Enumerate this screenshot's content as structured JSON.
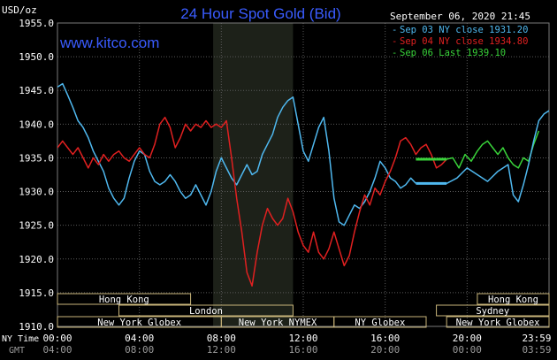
{
  "chart_data": {
    "type": "line",
    "title": "24 Hour Spot Gold (Bid)",
    "unit_label": "USD/oz",
    "watermark": "www.kitco.com",
    "date_label": "September 06, 2020 21:45",
    "x_unit": "hour of day (NY Time)",
    "xlim": [
      0,
      24
    ],
    "ylim": [
      1910,
      1955
    ],
    "y_ticks": [
      "1955.0",
      "1950.0",
      "1945.0",
      "1940.0",
      "1935.0",
      "1930.0",
      "1925.0",
      "1920.0",
      "1915.0",
      "1910.0"
    ],
    "x_tick_values": [
      0,
      4,
      8,
      12,
      16,
      20,
      24
    ],
    "x_ticks_ny": [
      "00:00",
      "04:00",
      "08:00",
      "12:00",
      "16:00",
      "20:00",
      "23:59"
    ],
    "x_ticks_gmt": [
      "04:00",
      "08:00",
      "12:00",
      "16:00",
      "20:00",
      "00:00",
      "03:59"
    ],
    "axis_row_ny": "NY Time",
    "axis_row_gmt": "GMT",
    "grid": true,
    "legend_position": "top-right",
    "shaded_range": [
      7.6,
      11.5
    ],
    "series": [
      {
        "name": "Sep 03 NY close 1931.20",
        "color": "#4fb8ef",
        "points": [
          [
            0,
            1945.5
          ],
          [
            0.25,
            1946.0
          ],
          [
            0.5,
            1944.3
          ],
          [
            0.75,
            1942.5
          ],
          [
            1.0,
            1940.5
          ],
          [
            1.25,
            1939.5
          ],
          [
            1.5,
            1938.0
          ],
          [
            1.75,
            1936.0
          ],
          [
            2.0,
            1934.5
          ],
          [
            2.25,
            1933.0
          ],
          [
            2.5,
            1930.5
          ],
          [
            2.75,
            1929.0
          ],
          [
            3.0,
            1928.0
          ],
          [
            3.25,
            1929.0
          ],
          [
            3.5,
            1932.0
          ],
          [
            3.75,
            1934.5
          ],
          [
            4.0,
            1936.0
          ],
          [
            4.25,
            1935.5
          ],
          [
            4.5,
            1933.0
          ],
          [
            4.75,
            1931.5
          ],
          [
            5.0,
            1931.0
          ],
          [
            5.25,
            1931.5
          ],
          [
            5.5,
            1932.5
          ],
          [
            5.75,
            1931.5
          ],
          [
            6.0,
            1930.0
          ],
          [
            6.25,
            1929.0
          ],
          [
            6.5,
            1929.5
          ],
          [
            6.75,
            1931.0
          ],
          [
            7.0,
            1929.5
          ],
          [
            7.25,
            1928.0
          ],
          [
            7.5,
            1930.0
          ],
          [
            7.75,
            1933.0
          ],
          [
            8.0,
            1935.0
          ],
          [
            8.25,
            1933.5
          ],
          [
            8.5,
            1932.0
          ],
          [
            8.75,
            1931.0
          ],
          [
            9.0,
            1932.5
          ],
          [
            9.25,
            1934.0
          ],
          [
            9.5,
            1932.5
          ],
          [
            9.75,
            1933.0
          ],
          [
            10.0,
            1935.5
          ],
          [
            10.25,
            1937.0
          ],
          [
            10.5,
            1938.5
          ],
          [
            10.75,
            1941.0
          ],
          [
            11.0,
            1942.5
          ],
          [
            11.25,
            1943.5
          ],
          [
            11.5,
            1944.0
          ],
          [
            11.75,
            1940.0
          ],
          [
            12.0,
            1936.0
          ],
          [
            12.25,
            1934.5
          ],
          [
            12.5,
            1937.0
          ],
          [
            12.75,
            1939.5
          ],
          [
            13.0,
            1941.0
          ],
          [
            13.25,
            1936.0
          ],
          [
            13.5,
            1929.0
          ],
          [
            13.75,
            1925.5
          ],
          [
            14.0,
            1925.0
          ],
          [
            14.25,
            1926.5
          ],
          [
            14.5,
            1928.0
          ],
          [
            14.75,
            1927.5
          ],
          [
            15.0,
            1928.5
          ],
          [
            15.25,
            1930.0
          ],
          [
            15.5,
            1932.0
          ],
          [
            15.75,
            1934.5
          ],
          [
            16.0,
            1933.5
          ],
          [
            16.25,
            1932.0
          ],
          [
            16.5,
            1931.5
          ],
          [
            16.75,
            1930.5
          ],
          [
            17.0,
            1931.0
          ],
          [
            17.25,
            1932.0
          ],
          [
            17.5,
            1931.2
          ]
        ]
      },
      {
        "name": "Sep 04 NY close 1934.80",
        "color": "#e02020",
        "points": [
          [
            0,
            1936.5
          ],
          [
            0.25,
            1937.5
          ],
          [
            0.5,
            1936.5
          ],
          [
            0.75,
            1935.5
          ],
          [
            1.0,
            1936.5
          ],
          [
            1.25,
            1935.0
          ],
          [
            1.5,
            1933.5
          ],
          [
            1.75,
            1935.0
          ],
          [
            2.0,
            1934.0
          ],
          [
            2.25,
            1935.5
          ],
          [
            2.5,
            1934.5
          ],
          [
            2.75,
            1935.5
          ],
          [
            3.0,
            1936.0
          ],
          [
            3.25,
            1935.0
          ],
          [
            3.5,
            1934.5
          ],
          [
            3.75,
            1935.5
          ],
          [
            4.0,
            1936.5
          ],
          [
            4.25,
            1935.5
          ],
          [
            4.5,
            1935.0
          ],
          [
            4.75,
            1937.0
          ],
          [
            5.0,
            1940.0
          ],
          [
            5.25,
            1941.0
          ],
          [
            5.5,
            1939.5
          ],
          [
            5.75,
            1936.5
          ],
          [
            6.0,
            1938.0
          ],
          [
            6.25,
            1940.0
          ],
          [
            6.5,
            1939.0
          ],
          [
            6.75,
            1940.0
          ],
          [
            7.0,
            1939.5
          ],
          [
            7.25,
            1940.5
          ],
          [
            7.5,
            1939.5
          ],
          [
            7.75,
            1940.0
          ],
          [
            8.0,
            1939.5
          ],
          [
            8.25,
            1940.5
          ],
          [
            8.5,
            1935.0
          ],
          [
            8.75,
            1929.0
          ],
          [
            9.0,
            1924.0
          ],
          [
            9.25,
            1918.0
          ],
          [
            9.5,
            1916.0
          ],
          [
            9.75,
            1921.0
          ],
          [
            10.0,
            1925.0
          ],
          [
            10.25,
            1927.5
          ],
          [
            10.5,
            1926.0
          ],
          [
            10.75,
            1925.0
          ],
          [
            11.0,
            1926.0
          ],
          [
            11.25,
            1929.0
          ],
          [
            11.5,
            1927.0
          ],
          [
            11.75,
            1924.0
          ],
          [
            12.0,
            1922.0
          ],
          [
            12.25,
            1921.0
          ],
          [
            12.5,
            1924.0
          ],
          [
            12.75,
            1921.0
          ],
          [
            13.0,
            1920.0
          ],
          [
            13.25,
            1921.5
          ],
          [
            13.5,
            1924.0
          ],
          [
            13.75,
            1921.5
          ],
          [
            14.0,
            1919.0
          ],
          [
            14.25,
            1920.5
          ],
          [
            14.5,
            1924.0
          ],
          [
            14.75,
            1927.0
          ],
          [
            15.0,
            1929.5
          ],
          [
            15.25,
            1928.0
          ],
          [
            15.5,
            1930.5
          ],
          [
            15.75,
            1929.5
          ],
          [
            16.0,
            1931.5
          ],
          [
            16.25,
            1933.0
          ],
          [
            16.5,
            1935.0
          ],
          [
            16.75,
            1937.5
          ],
          [
            17.0,
            1938.0
          ],
          [
            17.25,
            1937.0
          ],
          [
            17.5,
            1935.5
          ],
          [
            17.75,
            1936.5
          ],
          [
            18.0,
            1937.0
          ],
          [
            18.25,
            1935.5
          ],
          [
            18.5,
            1933.5
          ],
          [
            18.75,
            1934.0
          ],
          [
            19.0,
            1934.8
          ]
        ]
      },
      {
        "name": "Sep 06 Last 1939.10",
        "color": "#39d33a",
        "points": [
          [
            19.0,
            1934.8
          ],
          [
            19.3,
            1935.0
          ],
          [
            19.6,
            1933.5
          ],
          [
            19.9,
            1935.5
          ],
          [
            20.2,
            1934.5
          ],
          [
            20.5,
            1936.0
          ],
          [
            20.75,
            1937.0
          ],
          [
            21.0,
            1937.5
          ],
          [
            21.25,
            1936.5
          ],
          [
            21.5,
            1935.5
          ],
          [
            21.75,
            1936.5
          ],
          [
            22.0,
            1935.0
          ],
          [
            22.25,
            1934.0
          ],
          [
            22.5,
            1933.5
          ],
          [
            22.75,
            1935.0
          ],
          [
            23.0,
            1934.5
          ],
          [
            23.25,
            1937.0
          ],
          [
            23.5,
            1939.0
          ]
        ]
      },
      {
        "name": "",
        "color": "#4fb8ef",
        "points": [
          [
            19.0,
            1931.2
          ],
          [
            19.5,
            1932.0
          ],
          [
            20.0,
            1933.5
          ],
          [
            20.5,
            1932.5
          ],
          [
            21.0,
            1931.5
          ],
          [
            21.5,
            1933.0
          ],
          [
            22.0,
            1934.0
          ],
          [
            22.25,
            1929.5
          ],
          [
            22.5,
            1928.5
          ],
          [
            22.75,
            1931.0
          ],
          [
            23.0,
            1934.0
          ],
          [
            23.25,
            1937.5
          ],
          [
            23.5,
            1940.5
          ],
          [
            23.75,
            1941.5
          ],
          [
            24.0,
            1942.0
          ],
          [
            24.5,
            1938.5
          ],
          [
            25.0,
            1936.5
          ],
          [
            25.5,
            1938.0
          ],
          [
            26.0,
            1937.5
          ]
        ]
      }
    ],
    "sessions_row1": [
      {
        "label": "Hong Kong",
        "start": 0,
        "end": 6.5
      },
      {
        "label": "Hong Kong",
        "start": 20.5,
        "end": 24
      }
    ],
    "sessions_row2": [
      {
        "label": "London",
        "start": 3,
        "end": 11.5
      },
      {
        "label": "Sydney",
        "start": 18.5,
        "end": 24
      }
    ],
    "sessions_row3": [
      {
        "label": "New York Globex",
        "start": 0,
        "end": 8
      },
      {
        "label": "New York NYMEX",
        "start": 8,
        "end": 13.5
      },
      {
        "label": "NY Globex",
        "start": 13.5,
        "end": 18
      },
      {
        "label": "New York Globex",
        "start": 19,
        "end": 24
      }
    ]
  }
}
